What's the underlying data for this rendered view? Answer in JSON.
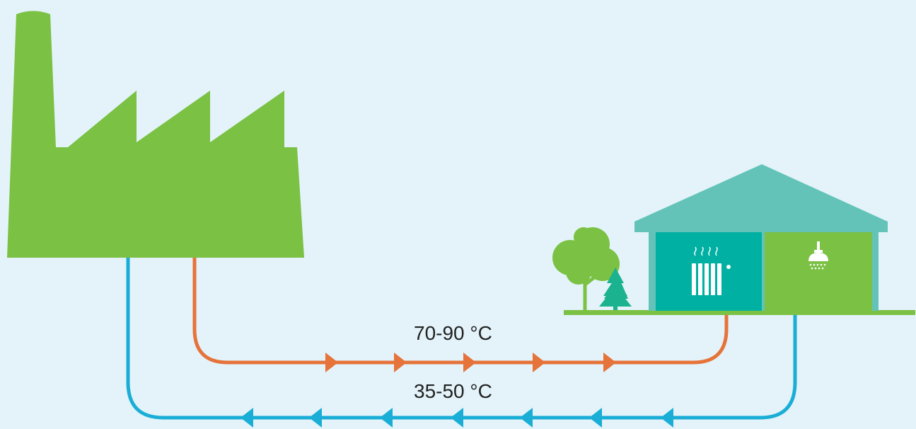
{
  "labels": {
    "supply_temperature": "70-90 °C",
    "return_temperature": "35-50 °C"
  },
  "colors": {
    "background": "#e3f3f9",
    "factory": "#7bc143",
    "supply_pipe": "#e5733a",
    "return_pipe": "#1aaed6",
    "house_roof": "#63c3b8",
    "heating_room": "#00b0a3",
    "bathroom": "#7bc143",
    "ground": "#7bc143",
    "tree": "#7bc143",
    "pine_tree": "#1bb28f"
  },
  "icons": {
    "plant": "factory-icon",
    "building": "house-icon",
    "heating": "radiator-icon",
    "hot_water": "shower-icon",
    "deciduous": "tree-icon",
    "conifer": "pine-tree-icon"
  },
  "flow": {
    "supply_direction": "to-house",
    "return_direction": "to-factory"
  }
}
